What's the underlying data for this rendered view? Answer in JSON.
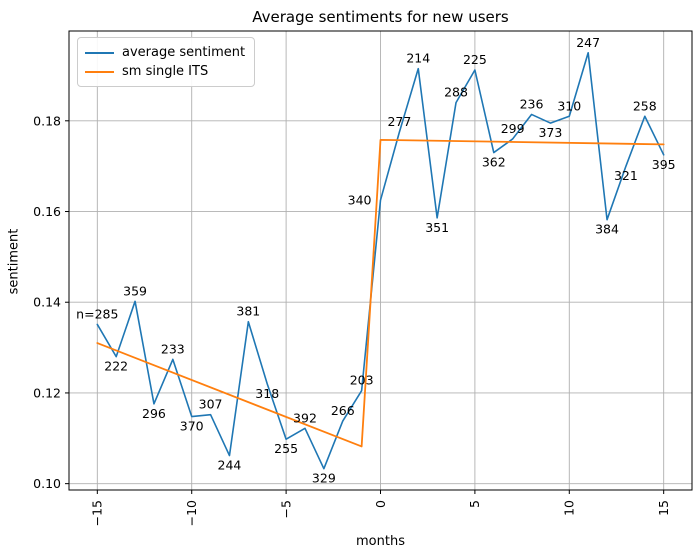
{
  "figure": {
    "title": "Average sentiments for new users",
    "xlabel": "months",
    "ylabel": "sentiment"
  },
  "legend": {
    "position": "upper left",
    "items": [
      {
        "label": "average sentiment",
        "color": "#1f77b4"
      },
      {
        "label": "sm single ITS",
        "color": "#ff7f0e"
      }
    ]
  },
  "chart_data": {
    "type": "line",
    "title": "Average sentiments for new users",
    "xlabel": "months",
    "ylabel": "sentiment",
    "grid": true,
    "grid_color": "#b0b0b0",
    "axis_color": "#000000",
    "text_color": "#000000",
    "xlim": [
      -16.5,
      16.5
    ],
    "ylim": [
      0.0986,
      0.1998
    ],
    "xticks": {
      "values": [
        -15,
        -10,
        -5,
        0,
        5,
        10,
        15
      ],
      "labels": [
        "−15",
        "−10",
        "−5",
        "0",
        "5",
        "10",
        "15"
      ],
      "rotation": -90
    },
    "yticks": {
      "values": [
        0.1,
        0.12,
        0.14,
        0.16,
        0.18
      ],
      "labels": [
        "0.10",
        "0.12",
        "0.14",
        "0.16",
        "0.18"
      ]
    },
    "x": [
      -15,
      -14,
      -13,
      -12,
      -11,
      -10,
      -9,
      -8,
      -7,
      -6,
      -5,
      -4,
      -3,
      -2,
      -1,
      0,
      1,
      2,
      3,
      4,
      5,
      6,
      7,
      8,
      9,
      10,
      11,
      12,
      13,
      14,
      15
    ],
    "series": [
      {
        "name": "average sentiment",
        "color": "#1f77b4",
        "values": [
          0.1351,
          0.128,
          0.1402,
          0.1176,
          0.1274,
          0.1148,
          0.1152,
          0.1062,
          0.1357,
          0.122,
          0.1098,
          0.1122,
          0.1033,
          0.1138,
          0.1205,
          0.1625,
          0.1775,
          0.1915,
          0.1586,
          0.184,
          0.1912,
          0.173,
          0.176,
          0.1814,
          0.1795,
          0.181,
          0.195,
          0.1582,
          0.17,
          0.181,
          0.1725
        ],
        "annotations": [
          "n=285",
          "222",
          "359",
          "296",
          "233",
          "370",
          "307",
          "244",
          "381",
          "318",
          "255",
          "392",
          "329",
          "266",
          "203",
          "340",
          "277",
          "214",
          "351",
          "288",
          "225",
          "362",
          "299",
          "236",
          "373",
          "310",
          "247",
          "384",
          "321",
          "258",
          "395"
        ],
        "annotation_sides": [
          "above",
          "below",
          "above",
          "below",
          "above",
          "below",
          "above",
          "below",
          "above",
          "below",
          "below",
          "above",
          "below",
          "above",
          "above",
          "left",
          "above",
          "above",
          "below",
          "above",
          "above",
          "below",
          "above",
          "above",
          "below",
          "above",
          "above",
          "below",
          "below",
          "above",
          "below"
        ]
      },
      {
        "name": "sm single ITS",
        "color": "#ff7f0e",
        "x": [
          -15,
          -1,
          0,
          15
        ],
        "values": [
          0.131,
          0.1082,
          0.1758,
          0.1748
        ]
      }
    ]
  }
}
